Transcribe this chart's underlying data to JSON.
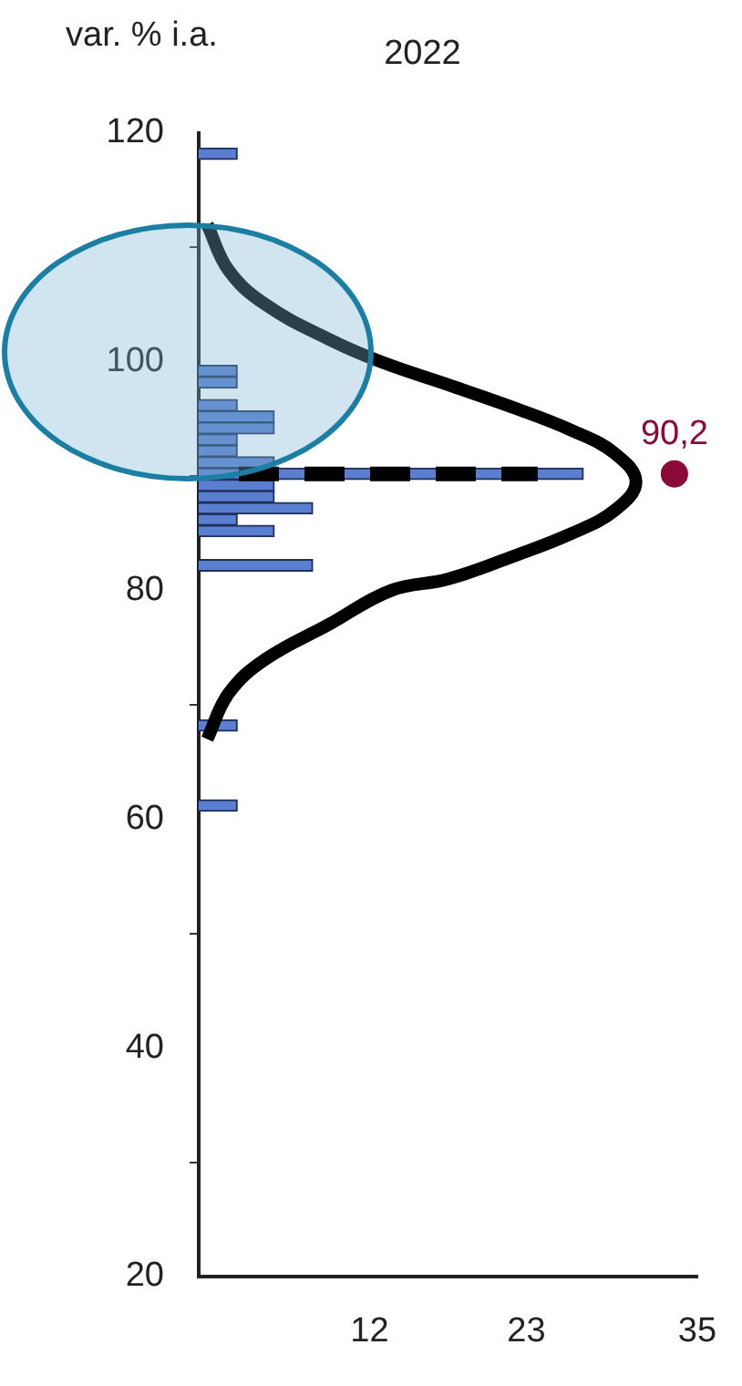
{
  "chart_data": {
    "type": "histogram",
    "orientation": "horizontal",
    "title": "2022",
    "ylabel": "var. % i.a.",
    "bins": [
      60.7,
      61.7,
      62.7,
      63.7,
      64.7,
      65.7,
      66.7,
      67.7,
      68.7,
      69.7,
      70.7,
      71.7,
      72.7,
      73.7,
      74.7,
      75.7,
      76.7,
      77.7,
      78.7,
      79.7,
      80.7,
      81.7,
      82.7,
      83.7,
      84.7,
      85.7,
      86.7,
      87.7,
      88.7,
      89.7,
      90.7,
      91.7,
      92.7,
      93.7,
      94.7,
      95.7,
      96.7,
      97.7,
      98.7,
      99.7,
      100.7,
      101.7,
      102.7,
      103.7,
      104.7,
      105.7,
      106.7,
      107.7,
      108.7,
      109.7,
      110.7,
      111.7,
      112.7,
      113.7,
      114.7,
      115.7,
      116.7,
      117.7,
      118.7
    ],
    "values": [
      2.7,
      0,
      0,
      0,
      0,
      0,
      0,
      2.7,
      0,
      0,
      0,
      0,
      0,
      0,
      0,
      0,
      0,
      0,
      0,
      0,
      0,
      8,
      0,
      0,
      5.3,
      2.7,
      8,
      5.3,
      5.3,
      27,
      5.3,
      2.7,
      2.7,
      5.3,
      5.3,
      2.7,
      0,
      2.7,
      2.7,
      0,
      0,
      0,
      0,
      0,
      0,
      0,
      0,
      0,
      0,
      0,
      0,
      0,
      0,
      0,
      0,
      0,
      0,
      2.7
    ],
    "color": "#5b7fd0",
    "series": [
      {
        "type": "line",
        "color": "#000000",
        "values": [
          0.6,
          2.1,
          4.7,
          9.1,
          12.8,
          17.5,
          22.1,
          26.2,
          29.2,
          30.7,
          29.2,
          26.2,
          22.1,
          17.5,
          13.5,
          9.1,
          4.7,
          2.1,
          0.6
        ],
        "x": [
          112,
          108,
          105,
          102,
          100,
          98,
          96,
          94,
          92,
          89.5,
          87,
          85,
          83,
          81,
          80,
          77,
          74,
          71,
          67
        ]
      },
      {
        "type": "scatter",
        "color": "#8b0a3a",
        "values": [
          33.4
        ],
        "x": [
          90.2
        ]
      }
    ],
    "annotations": [
      {
        "text": "90,2",
        "x": 33.4,
        "y": 90.2
      }
    ],
    "ref_lines": [
      {
        "axis": "y",
        "value": 90.2,
        "color": "#000000",
        "line_style": "dashed"
      }
    ],
    "xlim": [
      0,
      35
    ],
    "xticks": [
      12,
      23,
      35
    ],
    "ylim": [
      20,
      120
    ],
    "yticks": [
      20,
      40,
      60,
      80,
      100,
      120
    ],
    "grid": false,
    "legend": false
  }
}
